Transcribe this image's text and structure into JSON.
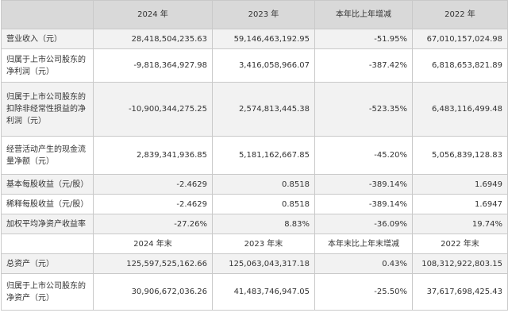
{
  "header1": [
    "",
    "2024 年",
    "2023 年",
    "本年比上年增减",
    "2022 年"
  ],
  "header2": [
    "",
    "2024 年末",
    "2023 年末",
    "本年末比上年末增减",
    "2022 年末"
  ],
  "rows1": [
    {
      "label": "营业收入（元）",
      "values": [
        "28,418,504,235.63",
        "59,146,463,192.95",
        "-51.95%",
        "67,010,157,024.98"
      ]
    },
    {
      "label": "归属于上市公司股东的净利润（元）",
      "values": [
        "-9,818,364,927.98",
        "3,416,058,966.07",
        "-387.42%",
        "6,818,653,821.89"
      ]
    },
    {
      "label": "归属于上市公司股东的扣除非经常性损益的净利润（元）",
      "values": [
        "-10,900,344,275.25",
        "2,574,813,445.38",
        "-523.35%",
        "6,483,116,499.48"
      ]
    },
    {
      "label": "经营活动产生的现金流量净额（元）",
      "values": [
        "2,839,341,936.85",
        "5,181,162,667.85",
        "-45.20%",
        "5,056,839,128.83"
      ]
    },
    {
      "label": "基本每股收益（元/股）",
      "values": [
        "-2.4629",
        "0.8518",
        "-389.14%",
        "1.6949"
      ]
    },
    {
      "label": "稀释每股收益（元/股）",
      "values": [
        "-2.4629",
        "0.8518",
        "-389.14%",
        "1.6947"
      ]
    },
    {
      "label": "加权平均净资产收益率",
      "values": [
        "-27.26%",
        "8.83%",
        "-36.09%",
        "19.74%"
      ]
    }
  ],
  "rows2": [
    {
      "label": "总资产（元）",
      "values": [
        "125,597,525,162.66",
        "125,063,043,317.18",
        "0.43%",
        "108,312,922,803.15"
      ]
    },
    {
      "label": "归属于上市公司股东的净资产（元）",
      "values": [
        "30,906,672,036.26",
        "41,483,746,947.05",
        "-25.50%",
        "37,617,698,425.43"
      ]
    }
  ]
}
